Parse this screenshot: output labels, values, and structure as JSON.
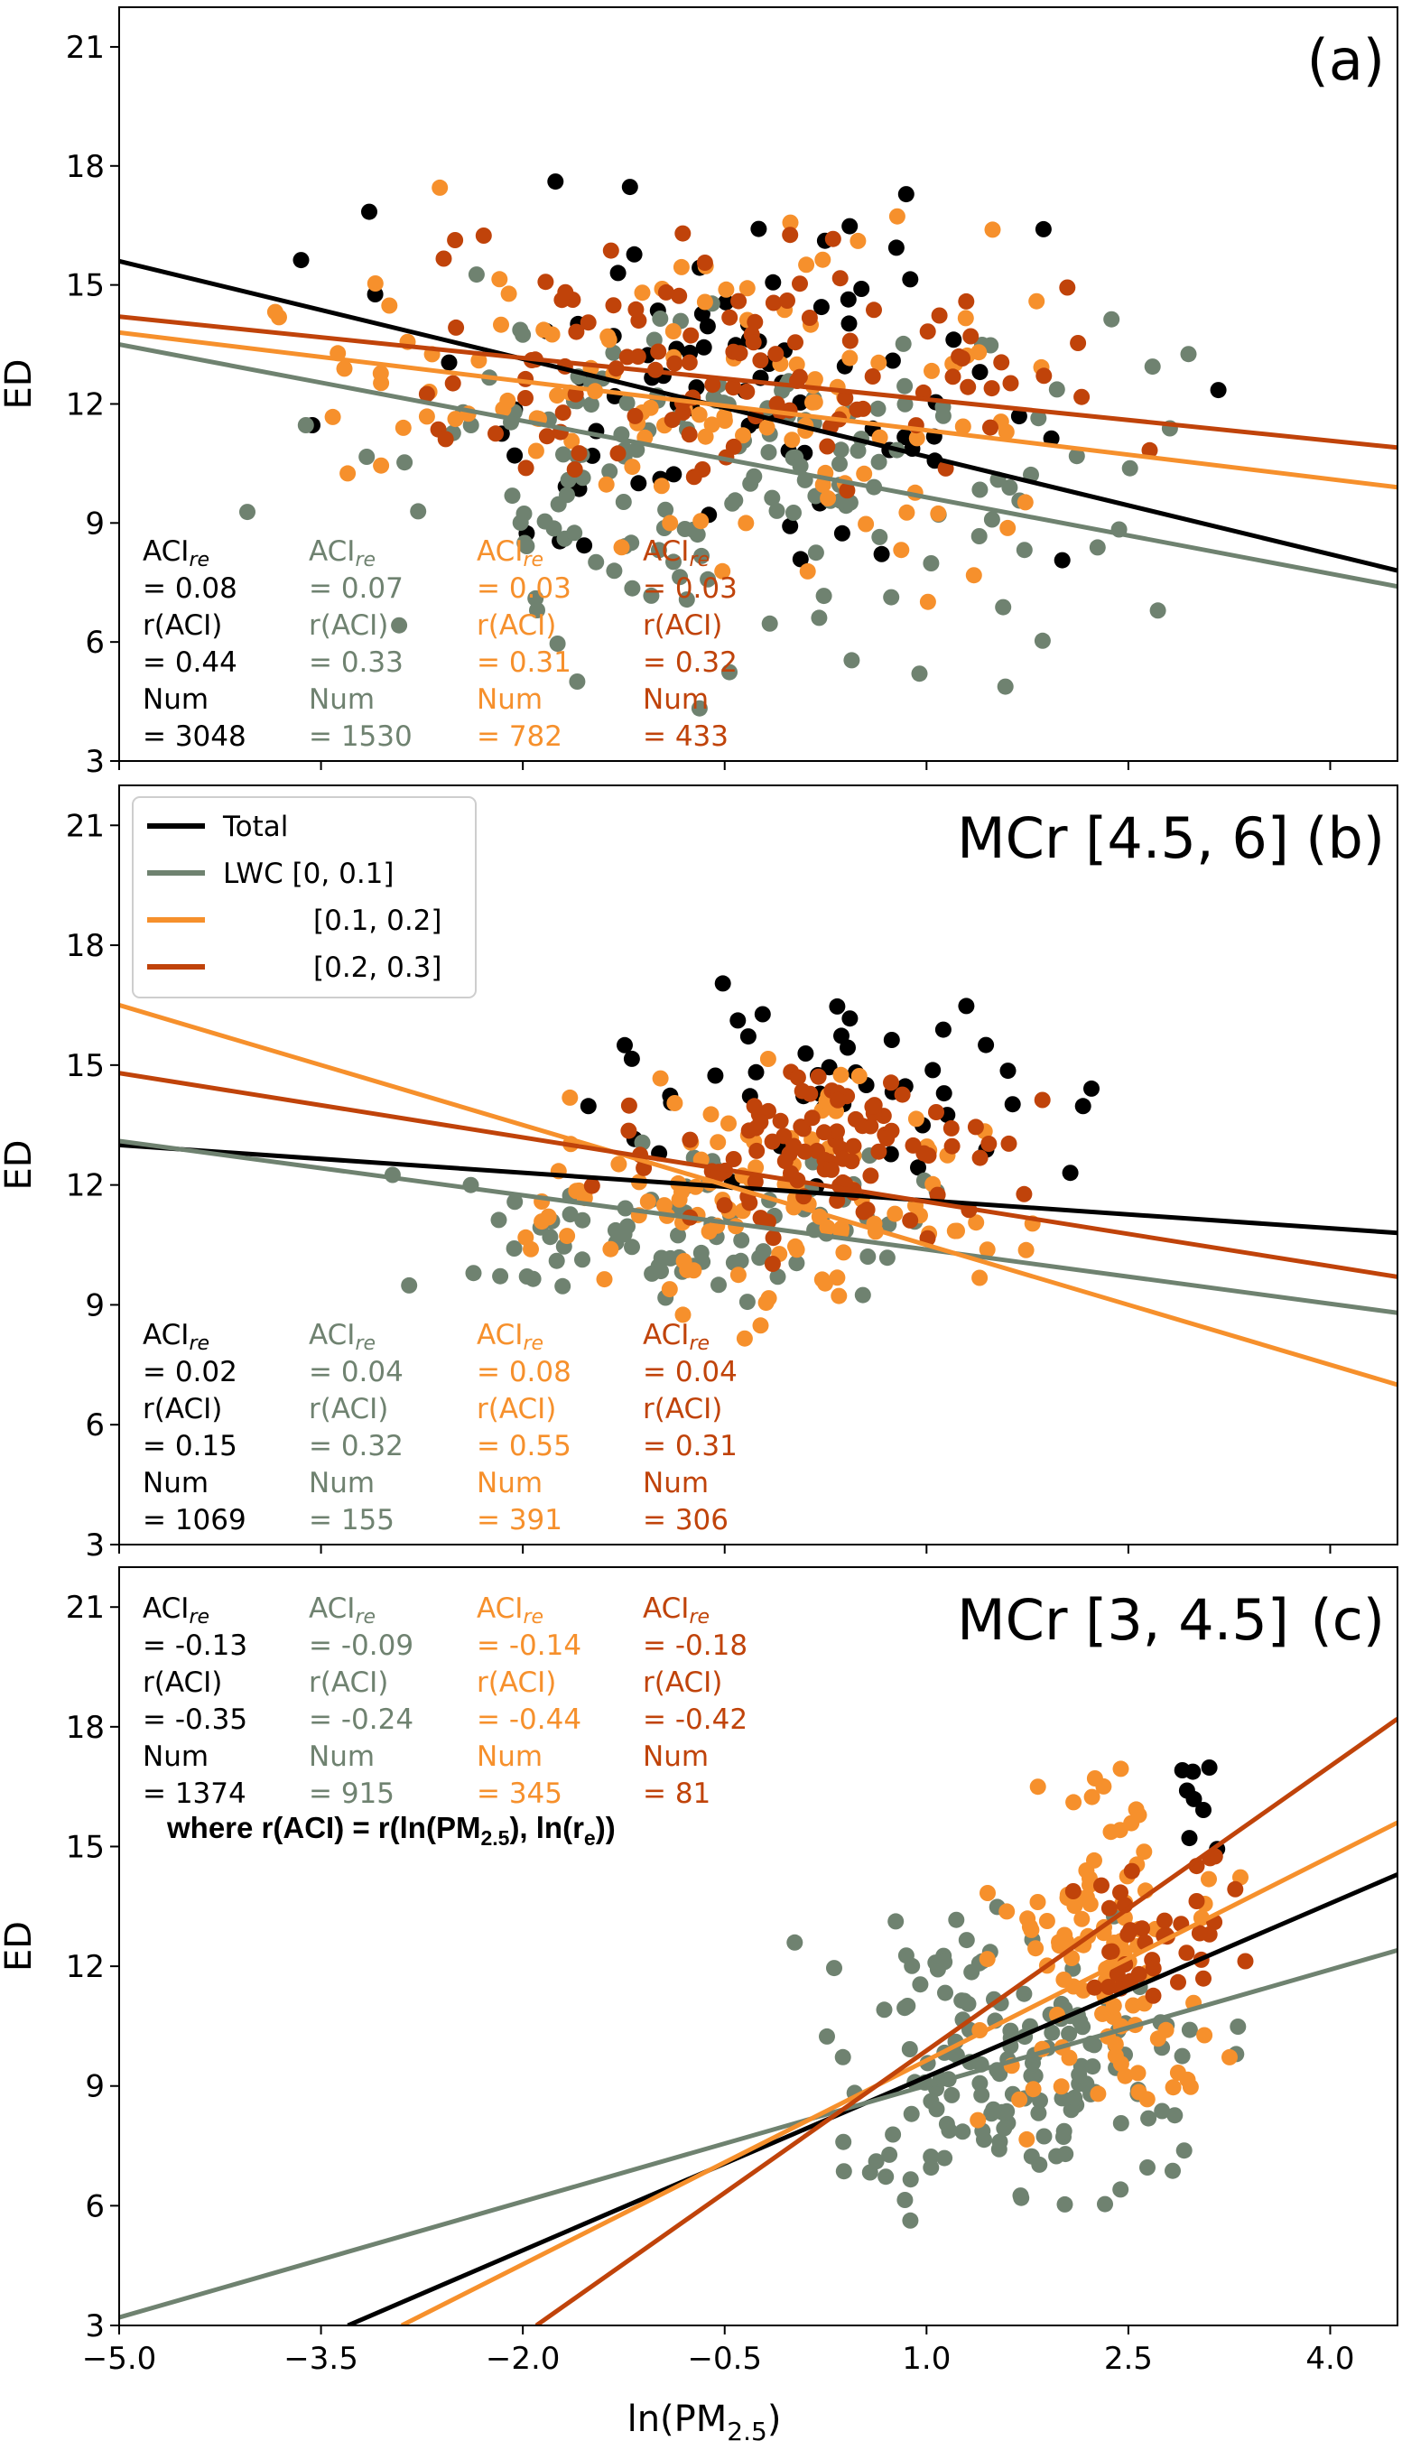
{
  "colors": {
    "Total": "#000000",
    "LWC [0, 0.1]": "#6f8270",
    "[0.1, 0.2]": "#f6902c",
    "[0.2, 0.3]": "#c0430a"
  },
  "legend": {
    "entries": [
      "Total",
      "LWC [0, 0.1]",
      "[0.1, 0.2]",
      "[0.2, 0.3]"
    ]
  },
  "note": {
    "prefix": "where r(ACI) = r(ln(PM",
    "sub1": "2.5",
    "mid": "), ln(r",
    "sub2": "e",
    "suffix": "))"
  },
  "chart_data": [
    {
      "type": "scatter",
      "panel_label": "(a)",
      "title": "",
      "xlabel": "ln(PM2.5)",
      "ylabel": "ED",
      "xlim": [
        -5.0,
        4.5
      ],
      "ylim": [
        3,
        22
      ],
      "x_ticks": [
        "−5.0",
        "−3.5",
        "−2.0",
        "−0.5",
        "1.0",
        "2.5",
        "4.0"
      ],
      "y_ticks": [
        "3",
        "6",
        "9",
        "12",
        "15",
        "18",
        "21"
      ],
      "grid": false,
      "series": [
        {
          "name": "Total",
          "fit": {
            "x": [
              -5.0,
              4.5
            ],
            "y": [
              15.6,
              7.8
            ]
          },
          "cloud": {
            "x": [
              -4.6,
              3.6
            ],
            "y": [
              6,
              19.3
            ],
            "count": 90
          }
        },
        {
          "name": "LWC [0, 0.1]",
          "fit": {
            "x": [
              -5.0,
              4.5
            ],
            "y": [
              13.5,
              7.4
            ]
          },
          "cloud": {
            "x": [
              -4.6,
              3.7
            ],
            "y": [
              4,
              16.5
            ],
            "count": 160
          }
        },
        {
          "name": "[0.1, 0.2]",
          "fit": {
            "x": [
              -5.0,
              4.5
            ],
            "y": [
              13.8,
              9.9
            ]
          },
          "cloud": {
            "x": [
              -4.6,
              3.4
            ],
            "y": [
              6,
              18.3
            ],
            "count": 120
          }
        },
        {
          "name": "[0.2, 0.3]",
          "fit": {
            "x": [
              -5.0,
              4.5
            ],
            "y": [
              14.2,
              10.9
            ]
          },
          "cloud": {
            "x": [
              -4.6,
              3.3
            ],
            "y": [
              8,
              17.5
            ],
            "count": 110
          }
        }
      ],
      "stats": [
        {
          "aci": "= 0.08",
          "r": "= 0.44",
          "num": "= 3048"
        },
        {
          "aci": "= 0.07",
          "r": "= 0.33",
          "num": "= 1530"
        },
        {
          "aci": "= 0.03",
          "r": "= 0.31",
          "num": "= 782"
        },
        {
          "aci": "= 0.03",
          "r": "= 0.32",
          "num": "= 433"
        }
      ]
    },
    {
      "type": "scatter",
      "panel_label": "(b)",
      "title": "MCr [4.5, 6]",
      "xlabel": "ln(PM2.5)",
      "ylabel": "ED",
      "xlim": [
        -5.0,
        4.5
      ],
      "ylim": [
        3,
        22
      ],
      "x_ticks": [
        "−5.0",
        "−3.5",
        "−2.0",
        "−0.5",
        "1.0",
        "2.5",
        "4.0"
      ],
      "y_ticks": [
        "3",
        "6",
        "9",
        "12",
        "15",
        "18",
        "21"
      ],
      "grid": false,
      "legend_position": "top-left",
      "series": [
        {
          "name": "Total",
          "fit": {
            "x": [
              -5.0,
              4.5
            ],
            "y": [
              13.0,
              10.8
            ]
          },
          "cloud": {
            "x": [
              -2.5,
              3.3
            ],
            "y": [
              10.5,
              18.3
            ],
            "count": 50
          }
        },
        {
          "name": "LWC [0, 0.1]",
          "fit": {
            "x": [
              -5.0,
              4.5
            ],
            "y": [
              13.1,
              8.8
            ]
          },
          "cloud": {
            "x": [
              -3.4,
              2.0
            ],
            "y": [
              7.8,
              13.5
            ],
            "count": 80
          }
        },
        {
          "name": "[0.1, 0.2]",
          "fit": {
            "x": [
              -5.0,
              4.5
            ],
            "y": [
              16.5,
              7.0
            ]
          },
          "cloud": {
            "x": [
              -2.6,
              2.2
            ],
            "y": [
              7.5,
              16.3
            ],
            "count": 110
          }
        },
        {
          "name": "[0.2, 0.3]",
          "fit": {
            "x": [
              -5.0,
              4.5
            ],
            "y": [
              14.8,
              9.7
            ]
          },
          "cloud": {
            "x": [
              -1.8,
              2.2
            ],
            "y": [
              9.5,
              16.2
            ],
            "count": 100
          }
        }
      ],
      "stats": [
        {
          "aci": "= 0.02",
          "r": "= 0.15",
          "num": "= 1069"
        },
        {
          "aci": "= 0.04",
          "r": "= 0.32",
          "num": "= 155"
        },
        {
          "aci": "= 0.08",
          "r": "= 0.55",
          "num": "= 391"
        },
        {
          "aci": "= 0.04",
          "r": "= 0.31",
          "num": "= 306"
        }
      ]
    },
    {
      "type": "scatter",
      "panel_label": "(c)",
      "title": "MCr [3, 4.5]",
      "xlabel": "ln(PM2.5)",
      "ylabel": "ED",
      "xlim": [
        -5.0,
        4.5
      ],
      "ylim": [
        3,
        22
      ],
      "x_ticks": [
        "−5.0",
        "−3.5",
        "−2.0",
        "−0.5",
        "1.0",
        "2.5",
        "4.0"
      ],
      "y_ticks": [
        "3",
        "6",
        "9",
        "12",
        "15",
        "18",
        "21"
      ],
      "grid": false,
      "series": [
        {
          "name": "Total",
          "fit": {
            "x": [
              -3.3,
              4.5
            ],
            "y": [
              3.0,
              14.3
            ]
          },
          "cloud": {
            "x": [
              2.8,
              3.3
            ],
            "y": [
              14,
              18.2
            ],
            "count": 8
          }
        },
        {
          "name": "LWC [0, 0.1]",
          "fit": {
            "x": [
              -5.0,
              4.5
            ],
            "y": [
              3.2,
              12.4
            ]
          },
          "cloud": {
            "x": [
              -0.3,
              3.7
            ],
            "y": [
              4.3,
              14.5
            ],
            "count": 160
          }
        },
        {
          "name": "[0.1, 0.2]",
          "fit": {
            "x": [
              -2.9,
              4.5
            ],
            "y": [
              3.0,
              15.6
            ]
          },
          "cloud": {
            "x": [
              1.1,
              3.6
            ],
            "y": [
              6.5,
              18.2
            ],
            "count": 110
          }
        },
        {
          "name": "[0.2, 0.3]",
          "fit": {
            "x": [
              -1.9,
              4.5
            ],
            "y": [
              3.0,
              18.2
            ]
          },
          "cloud": {
            "x": [
              1.8,
              3.5
            ],
            "y": [
              10,
              17
            ],
            "count": 40
          }
        }
      ],
      "stats": [
        {
          "aci": "= -0.13",
          "r": "= -0.35",
          "num": "= 1374"
        },
        {
          "aci": "= -0.09",
          "r": "= -0.24",
          "num": "= 915"
        },
        {
          "aci": "= -0.14",
          "r": "= -0.44",
          "num": "= 345"
        },
        {
          "aci": "= -0.18",
          "r": "= -0.42",
          "num": "= 81"
        }
      ]
    }
  ],
  "labels": {
    "aci_main": "ACI",
    "aci_sub": "re",
    "r_label": "r(ACI)",
    "num_label": "Num",
    "xlabel_main": "ln(PM",
    "xlabel_sub": "2.5",
    "xlabel_end": ")"
  }
}
